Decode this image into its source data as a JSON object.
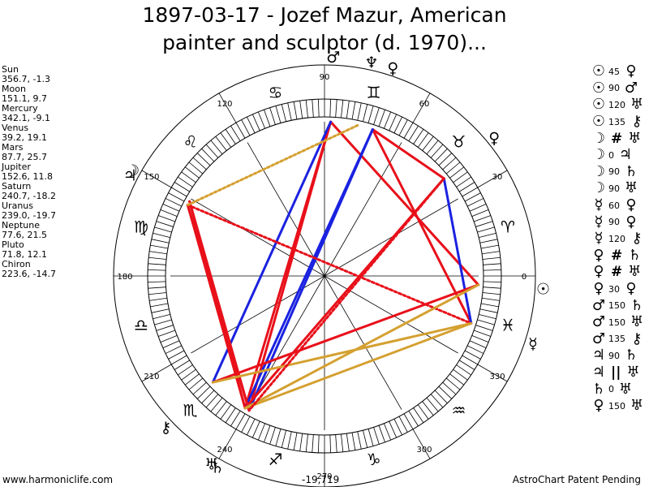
{
  "title": {
    "line1": "1897-03-17 - Jozef Mazur, American",
    "line2": "painter and sculptor (d. 1970)..."
  },
  "planets": [
    {
      "name": "Sun",
      "coords": "356.7, -1.3",
      "glyph": "☉",
      "lon": 356.7
    },
    {
      "name": "Moon",
      "coords": "151.1, 9.7",
      "glyph": "☽",
      "lon": 151.1
    },
    {
      "name": "Mercury",
      "coords": "342.1, -9.1",
      "glyph": "☿",
      "lon": 342.1
    },
    {
      "name": "Venus",
      "coords": "39.2, 19.1",
      "glyph": "♀",
      "lon": 39.2
    },
    {
      "name": "Mars",
      "coords": "87.7, 25.7",
      "glyph": "♂",
      "lon": 87.7
    },
    {
      "name": "Jupiter",
      "coords": "152.6, 11.8",
      "glyph": "♃",
      "lon": 152.6
    },
    {
      "name": "Saturn",
      "coords": "240.7, -18.2",
      "glyph": "♄",
      "lon": 240.7
    },
    {
      "name": "Uranus",
      "coords": "239.0, -19.7",
      "glyph": "♅",
      "lon": 239.0
    },
    {
      "name": "Neptune",
      "coords": "77.6, 21.5",
      "glyph": "♆",
      "lon": 77.6
    },
    {
      "name": "Pluto",
      "coords": "71.8, 12.1",
      "glyph": "♀",
      "lon": 71.8
    },
    {
      "name": "Chiron",
      "coords": "223.6, -14.7",
      "glyph": "⚷",
      "lon": 223.6
    }
  ],
  "aspects": [
    {
      "p1": "☉",
      "angle": "45",
      "p2": "♀",
      "sym": ""
    },
    {
      "p1": "☉",
      "angle": "90",
      "p2": "♂",
      "sym": ""
    },
    {
      "p1": "☉",
      "angle": "120",
      "p2": "♅",
      "sym": ""
    },
    {
      "p1": "☉",
      "angle": "135",
      "p2": "⚷",
      "sym": ""
    },
    {
      "p1": "☽",
      "angle": "",
      "p2": "♅",
      "sym": "#"
    },
    {
      "p1": "☽",
      "angle": "0",
      "p2": "♃",
      "sym": ""
    },
    {
      "p1": "☽",
      "angle": "90",
      "p2": "♄",
      "sym": ""
    },
    {
      "p1": "☽",
      "angle": "90",
      "p2": "♅",
      "sym": ""
    },
    {
      "p1": "☿",
      "angle": "60",
      "p2": "♀",
      "sym": ""
    },
    {
      "p1": "☿",
      "angle": "90",
      "p2": "♀",
      "sym": ""
    },
    {
      "p1": "☿",
      "angle": "120",
      "p2": "⚷",
      "sym": ""
    },
    {
      "p1": "♀",
      "angle": "",
      "p2": "♄",
      "sym": "#"
    },
    {
      "p1": "♀",
      "angle": "",
      "p2": "♅",
      "sym": "#"
    },
    {
      "p1": "♀",
      "angle": "30",
      "p2": "♀",
      "sym": ""
    },
    {
      "p1": "♂",
      "angle": "150",
      "p2": "♄",
      "sym": ""
    },
    {
      "p1": "♂",
      "angle": "150",
      "p2": "♅",
      "sym": ""
    },
    {
      "p1": "♂",
      "angle": "135",
      "p2": "⚷",
      "sym": ""
    },
    {
      "p1": "♃",
      "angle": "90",
      "p2": "♄",
      "sym": ""
    },
    {
      "p1": "♃",
      "angle": "",
      "p2": "♅",
      "sym": "||"
    },
    {
      "p1": "♄",
      "angle": "0",
      "p2": "♅",
      "sym": ""
    },
    {
      "p1": "♀",
      "angle": "150",
      "p2": "♅",
      "sym": ""
    }
  ],
  "wheel": {
    "degree_labels": [
      {
        "deg": 0,
        "text": "0"
      },
      {
        "deg": 30,
        "text": "30"
      },
      {
        "deg": 60,
        "text": "60"
      },
      {
        "deg": 90,
        "text": "90"
      },
      {
        "deg": 120,
        "text": "120"
      },
      {
        "deg": 150,
        "text": "150"
      },
      {
        "deg": 180,
        "text": "180"
      },
      {
        "deg": 210,
        "text": "210"
      },
      {
        "deg": 240,
        "text": "240"
      },
      {
        "deg": 270,
        "text": "270"
      },
      {
        "deg": 300,
        "text": "300"
      },
      {
        "deg": 330,
        "text": "330"
      }
    ],
    "signs": [
      "♈",
      "♉",
      "♊",
      "♋",
      "♌",
      "♍",
      "♎",
      "♏",
      "♐",
      "♑",
      "♒",
      "♓"
    ]
  },
  "aspect_lines": [
    {
      "a": 87.7,
      "b": 356.7,
      "color": "#e8101a",
      "style": "solid"
    },
    {
      "a": 87.7,
      "b": 239.0,
      "color": "#e8101a",
      "style": "solid"
    },
    {
      "a": 87.7,
      "b": 240.7,
      "color": "#e8101a",
      "style": "solid"
    },
    {
      "a": 87.7,
      "b": 223.6,
      "color": "#1a22e0",
      "style": "solid"
    },
    {
      "a": 71.8,
      "b": 39.2,
      "color": "#e8101a",
      "style": "solid"
    },
    {
      "a": 71.8,
      "b": 342.1,
      "color": "#e8101a",
      "style": "solid"
    },
    {
      "a": 71.8,
      "b": 240.7,
      "color": "#1a22e0",
      "style": "solid"
    },
    {
      "a": 71.8,
      "b": 239.0,
      "color": "#1a22e0",
      "style": "solid"
    },
    {
      "a": 39.2,
      "b": 342.1,
      "color": "#1a22e0",
      "style": "solid"
    },
    {
      "a": 39.2,
      "b": 239.0,
      "color": "#e8101a",
      "style": "solid"
    },
    {
      "a": 151.1,
      "b": 240.7,
      "color": "#e8101a",
      "style": "solid"
    },
    {
      "a": 151.1,
      "b": 239.0,
      "color": "#e8101a",
      "style": "solid"
    },
    {
      "a": 152.6,
      "b": 240.7,
      "color": "#e8101a",
      "style": "solid"
    },
    {
      "a": 152.6,
      "b": 239.0,
      "color": "#e8101a",
      "style": "solid"
    },
    {
      "a": 152.6,
      "b": 342.1,
      "color": "#e8101a",
      "style": "dotted"
    },
    {
      "a": 77.6,
      "b": 152.6,
      "color": "#d4a030",
      "style": "dotted"
    },
    {
      "a": 356.7,
      "b": 223.6,
      "color": "#e8101a",
      "style": "solid"
    },
    {
      "a": 356.7,
      "b": 239.0,
      "color": "#d4a030",
      "style": "solid"
    },
    {
      "a": 342.1,
      "b": 223.6,
      "color": "#d4a030",
      "style": "solid"
    },
    {
      "a": 342.1,
      "b": 239.0,
      "color": "#d4a030",
      "style": "solid"
    },
    {
      "a": 39.2,
      "b": 240.7,
      "color": "#e8101a",
      "style": "dotted"
    }
  ],
  "footer": {
    "left": "www.harmoniclife.com",
    "center": "-19,719",
    "right": "AstroChart Patent Pending"
  }
}
